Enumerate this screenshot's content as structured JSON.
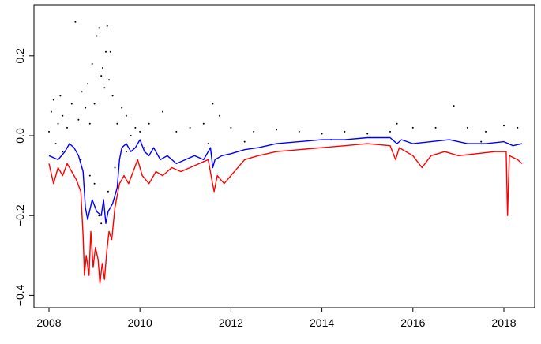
{
  "chart_data": {
    "type": "line",
    "title": "",
    "xlabel": "",
    "ylabel": "",
    "xlim": [
      2008,
      2018.5
    ],
    "ylim": [
      -0.4,
      0.3
    ],
    "x_ticks": [
      {
        "value": 2008,
        "label": "2008"
      },
      {
        "value": 2010,
        "label": "2010"
      },
      {
        "value": 2012,
        "label": "2012"
      },
      {
        "value": 2014,
        "label": "2014"
      },
      {
        "value": 2016,
        "label": "2016"
      },
      {
        "value": 2018,
        "label": "2018"
      }
    ],
    "y_ticks": [
      {
        "value": -0.4,
        "label": "−0.4"
      },
      {
        "value": -0.2,
        "label": "−0.2"
      },
      {
        "value": 0.0,
        "label": "0.0"
      },
      {
        "value": 0.2,
        "label": "0.2"
      }
    ],
    "grid": false,
    "legend": "none",
    "series": [
      {
        "style": "points",
        "color": "#000000",
        "values": [
          [
            2008.0,
            0.01
          ],
          [
            2008.05,
            0.06
          ],
          [
            2008.1,
            0.09
          ],
          [
            2008.15,
            -0.02
          ],
          [
            2008.2,
            0.03
          ],
          [
            2008.25,
            0.1
          ],
          [
            2008.3,
            0.05
          ],
          [
            2008.4,
            0.02
          ],
          [
            2008.5,
            0.08
          ],
          [
            2008.58,
            0.285
          ],
          [
            2008.65,
            0.04
          ],
          [
            2008.72,
            0.11
          ],
          [
            2008.8,
            0.07
          ],
          [
            2008.85,
            0.13
          ],
          [
            2008.9,
            0.03
          ],
          [
            2008.95,
            0.18
          ],
          [
            2009.0,
            0.08
          ],
          [
            2009.05,
            0.25
          ],
          [
            2009.1,
            0.27
          ],
          [
            2009.15,
            0.15
          ],
          [
            2009.18,
            0.17
          ],
          [
            2009.22,
            0.12
          ],
          [
            2009.25,
            0.21
          ],
          [
            2009.28,
            0.275
          ],
          [
            2009.32,
            0.14
          ],
          [
            2009.35,
            0.21
          ],
          [
            2009.4,
            0.1
          ],
          [
            2009.5,
            0.03
          ],
          [
            2009.6,
            0.07
          ],
          [
            2009.7,
            0.05
          ],
          [
            2009.8,
            0.0
          ],
          [
            2009.9,
            0.02
          ],
          [
            2010.0,
            0.01
          ],
          [
            2010.2,
            0.03
          ],
          [
            2010.5,
            0.06
          ],
          [
            2010.8,
            0.01
          ],
          [
            2011.1,
            0.02
          ],
          [
            2011.4,
            0.03
          ],
          [
            2011.6,
            0.08
          ],
          [
            2011.75,
            0.05
          ],
          [
            2012.0,
            0.02
          ],
          [
            2012.5,
            0.01
          ],
          [
            2013.0,
            0.015
          ],
          [
            2013.5,
            0.01
          ],
          [
            2014.0,
            0.005
          ],
          [
            2014.5,
            0.01
          ],
          [
            2015.0,
            0.005
          ],
          [
            2015.5,
            0.01
          ],
          [
            2015.65,
            0.03
          ],
          [
            2016.0,
            0.02
          ],
          [
            2016.5,
            0.02
          ],
          [
            2016.9,
            0.075
          ],
          [
            2017.2,
            0.02
          ],
          [
            2017.6,
            0.01
          ],
          [
            2018.0,
            0.025
          ],
          [
            2018.3,
            0.02
          ],
          [
            2008.3,
            -0.04
          ],
          [
            2008.7,
            -0.06
          ],
          [
            2008.9,
            -0.1
          ],
          [
            2009.0,
            -0.12
          ],
          [
            2009.1,
            -0.2
          ],
          [
            2009.15,
            -0.22
          ],
          [
            2009.3,
            -0.14
          ],
          [
            2009.45,
            -0.08
          ],
          [
            2009.7,
            -0.04
          ],
          [
            2010.1,
            -0.03
          ],
          [
            2011.5,
            -0.02
          ],
          [
            2012.3,
            -0.015
          ],
          [
            2014.2,
            -0.01
          ],
          [
            2016.1,
            -0.02
          ],
          [
            2017.5,
            -0.015
          ],
          [
            2018.1,
            -0.02
          ]
        ]
      },
      {
        "style": "line",
        "color": "#0000ff",
        "values": [
          [
            2008.0,
            -0.05
          ],
          [
            2008.2,
            -0.06
          ],
          [
            2008.35,
            -0.04
          ],
          [
            2008.45,
            -0.02
          ],
          [
            2008.55,
            -0.03
          ],
          [
            2008.65,
            -0.05
          ],
          [
            2008.75,
            -0.09
          ],
          [
            2008.8,
            -0.18
          ],
          [
            2008.85,
            -0.21
          ],
          [
            2008.95,
            -0.16
          ],
          [
            2009.05,
            -0.19
          ],
          [
            2009.15,
            -0.2
          ],
          [
            2009.2,
            -0.16
          ],
          [
            2009.25,
            -0.22
          ],
          [
            2009.3,
            -0.19
          ],
          [
            2009.4,
            -0.17
          ],
          [
            2009.5,
            -0.13
          ],
          [
            2009.55,
            -0.06
          ],
          [
            2009.6,
            -0.03
          ],
          [
            2009.7,
            -0.02
          ],
          [
            2009.8,
            -0.04
          ],
          [
            2009.9,
            -0.03
          ],
          [
            2010.0,
            -0.01
          ],
          [
            2010.1,
            -0.04
          ],
          [
            2010.2,
            -0.05
          ],
          [
            2010.3,
            -0.03
          ],
          [
            2010.45,
            -0.06
          ],
          [
            2010.6,
            -0.05
          ],
          [
            2010.8,
            -0.07
          ],
          [
            2011.0,
            -0.06
          ],
          [
            2011.2,
            -0.05
          ],
          [
            2011.4,
            -0.06
          ],
          [
            2011.55,
            -0.03
          ],
          [
            2011.6,
            -0.08
          ],
          [
            2011.65,
            -0.06
          ],
          [
            2011.8,
            -0.05
          ],
          [
            2012.0,
            -0.045
          ],
          [
            2012.3,
            -0.035
          ],
          [
            2012.6,
            -0.03
          ],
          [
            2013.0,
            -0.02
          ],
          [
            2013.5,
            -0.015
          ],
          [
            2014.0,
            -0.01
          ],
          [
            2014.5,
            -0.01
          ],
          [
            2015.0,
            -0.005
          ],
          [
            2015.5,
            -0.005
          ],
          [
            2015.65,
            -0.02
          ],
          [
            2015.75,
            -0.01
          ],
          [
            2016.0,
            -0.02
          ],
          [
            2016.4,
            -0.015
          ],
          [
            2016.8,
            -0.01
          ],
          [
            2017.2,
            -0.02
          ],
          [
            2017.6,
            -0.02
          ],
          [
            2018.0,
            -0.015
          ],
          [
            2018.2,
            -0.025
          ],
          [
            2018.4,
            -0.02
          ]
        ]
      },
      {
        "style": "line",
        "color": "#ff0000",
        "values": [
          [
            2008.0,
            -0.07
          ],
          [
            2008.1,
            -0.12
          ],
          [
            2008.2,
            -0.08
          ],
          [
            2008.3,
            -0.1
          ],
          [
            2008.4,
            -0.07
          ],
          [
            2008.5,
            -0.09
          ],
          [
            2008.6,
            -0.11
          ],
          [
            2008.7,
            -0.14
          ],
          [
            2008.75,
            -0.25
          ],
          [
            2008.78,
            -0.35
          ],
          [
            2008.82,
            -0.3
          ],
          [
            2008.88,
            -0.35
          ],
          [
            2008.92,
            -0.24
          ],
          [
            2008.97,
            -0.33
          ],
          [
            2009.02,
            -0.28
          ],
          [
            2009.08,
            -0.31
          ],
          [
            2009.12,
            -0.37
          ],
          [
            2009.17,
            -0.32
          ],
          [
            2009.22,
            -0.36
          ],
          [
            2009.27,
            -0.29
          ],
          [
            2009.32,
            -0.24
          ],
          [
            2009.38,
            -0.26
          ],
          [
            2009.45,
            -0.18
          ],
          [
            2009.55,
            -0.12
          ],
          [
            2009.65,
            -0.1
          ],
          [
            2009.75,
            -0.12
          ],
          [
            2009.85,
            -0.09
          ],
          [
            2009.95,
            -0.06
          ],
          [
            2010.05,
            -0.1
          ],
          [
            2010.2,
            -0.12
          ],
          [
            2010.35,
            -0.09
          ],
          [
            2010.5,
            -0.1
          ],
          [
            2010.7,
            -0.08
          ],
          [
            2010.9,
            -0.09
          ],
          [
            2011.1,
            -0.08
          ],
          [
            2011.3,
            -0.07
          ],
          [
            2011.5,
            -0.06
          ],
          [
            2011.58,
            -0.11
          ],
          [
            2011.63,
            -0.14
          ],
          [
            2011.7,
            -0.1
          ],
          [
            2011.85,
            -0.12
          ],
          [
            2012.0,
            -0.1
          ],
          [
            2012.3,
            -0.06
          ],
          [
            2012.6,
            -0.05
          ],
          [
            2013.0,
            -0.04
          ],
          [
            2013.5,
            -0.035
          ],
          [
            2014.0,
            -0.03
          ],
          [
            2014.5,
            -0.025
          ],
          [
            2015.0,
            -0.02
          ],
          [
            2015.5,
            -0.025
          ],
          [
            2015.62,
            -0.06
          ],
          [
            2015.7,
            -0.03
          ],
          [
            2016.0,
            -0.05
          ],
          [
            2016.2,
            -0.08
          ],
          [
            2016.4,
            -0.05
          ],
          [
            2016.7,
            -0.04
          ],
          [
            2017.0,
            -0.05
          ],
          [
            2017.4,
            -0.045
          ],
          [
            2017.8,
            -0.04
          ],
          [
            2018.05,
            -0.04
          ],
          [
            2018.08,
            -0.2
          ],
          [
            2018.12,
            -0.05
          ],
          [
            2018.3,
            -0.06
          ],
          [
            2018.4,
            -0.07
          ]
        ]
      }
    ]
  }
}
